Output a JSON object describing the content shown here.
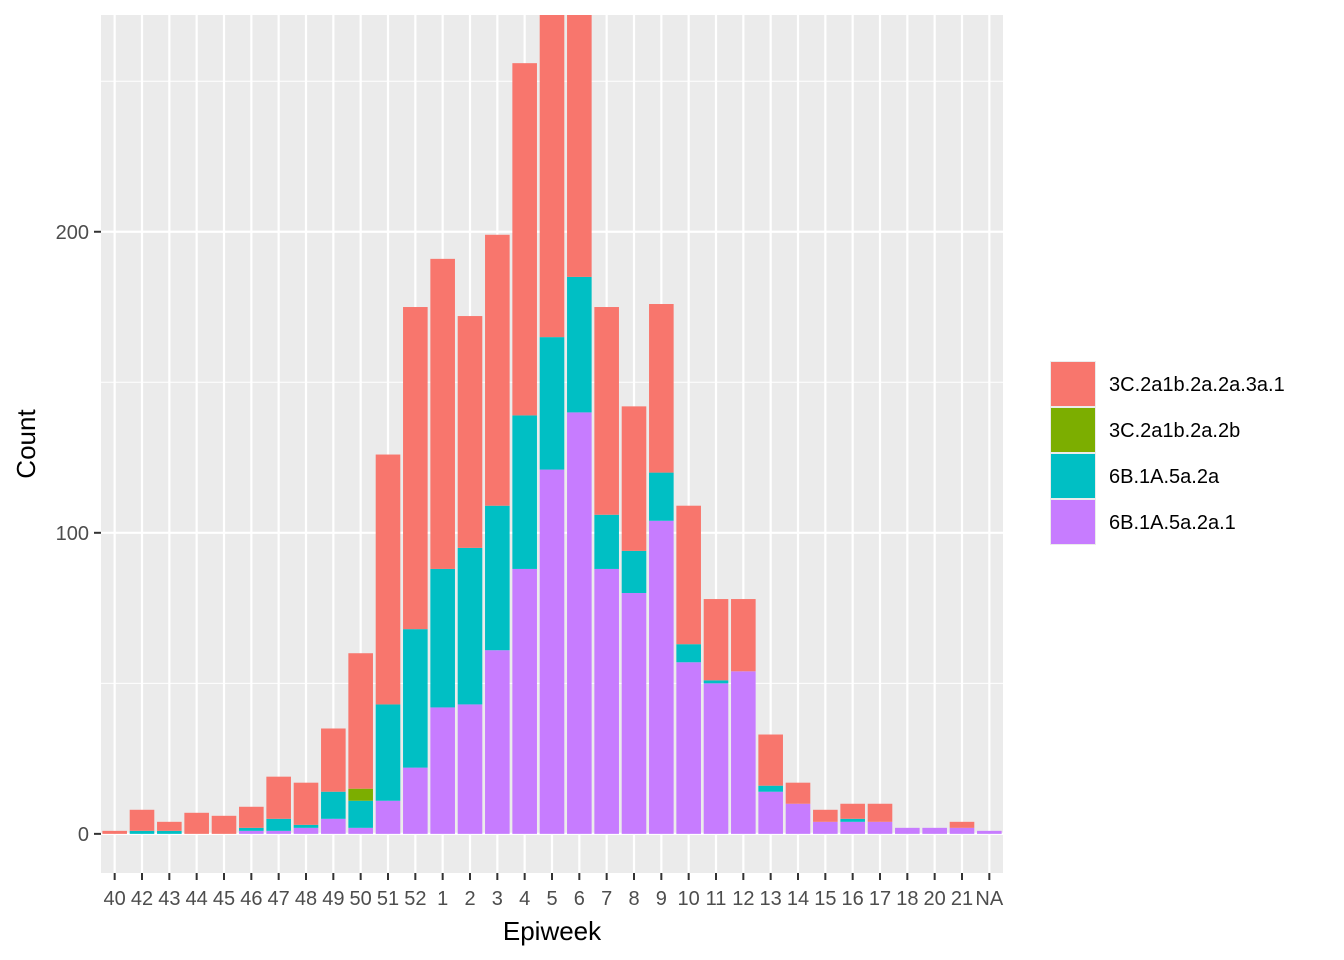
{
  "chart_data": {
    "type": "bar",
    "stacked": true,
    "title": "",
    "xlabel": "Epiweek",
    "ylabel": "Count",
    "ylim": [
      -13,
      272
    ],
    "yticks": [
      0,
      100,
      200
    ],
    "grid": true,
    "legend_position": "right",
    "categories": [
      "40",
      "42",
      "43",
      "44",
      "45",
      "46",
      "47",
      "48",
      "49",
      "50",
      "51",
      "52",
      "1",
      "2",
      "3",
      "4",
      "5",
      "6",
      "7",
      "8",
      "9",
      "10",
      "11",
      "12",
      "13",
      "14",
      "15",
      "16",
      "17",
      "18",
      "20",
      "21",
      "NA"
    ],
    "series": [
      {
        "name": "6B.1A.5a.2a.1",
        "color": "#C77CFF",
        "values": [
          0,
          0,
          0,
          0,
          0,
          1,
          1,
          2,
          5,
          2,
          11,
          22,
          42,
          43,
          61,
          88,
          121,
          140,
          88,
          80,
          104,
          57,
          50,
          54,
          14,
          10,
          4,
          4,
          4,
          2,
          2,
          2,
          1
        ]
      },
      {
        "name": "6B.1A.5a.2a",
        "color": "#00BFC4",
        "values": [
          0,
          1,
          1,
          0,
          0,
          1,
          4,
          1,
          9,
          9,
          32,
          46,
          46,
          52,
          48,
          51,
          44,
          45,
          18,
          14,
          16,
          6,
          1,
          0,
          2,
          0,
          0,
          1,
          0,
          0,
          0,
          0,
          0
        ]
      },
      {
        "name": "3C.2a1b.2a.2b",
        "color": "#7CAE00",
        "values": [
          0,
          0,
          0,
          0,
          0,
          0,
          0,
          0,
          0,
          4,
          0,
          0,
          0,
          0,
          0,
          0,
          0,
          0,
          0,
          0,
          0,
          0,
          0,
          0,
          0,
          0,
          0,
          0,
          0,
          0,
          0,
          0,
          0
        ]
      },
      {
        "name": "3C.2a1b.2a.2a.3a.1",
        "color": "#F8766D",
        "values": [
          1,
          7,
          3,
          7,
          6,
          7,
          14,
          14,
          21,
          45,
          83,
          107,
          103,
          77,
          90,
          117,
          107,
          87,
          69,
          48,
          56,
          46,
          27,
          24,
          17,
          7,
          4,
          5,
          6,
          0,
          0,
          2,
          0
        ]
      }
    ],
    "legend_order": [
      "3C.2a1b.2a.2a.3a.1",
      "3C.2a1b.2a.2b",
      "6B.1A.5a.2a",
      "6B.1A.5a.2a.1"
    ],
    "colors": {
      "panel": "#EBEBEB",
      "grid": "#FFFFFF",
      "text": "#4D4D4D",
      "tick": "#333333"
    }
  }
}
